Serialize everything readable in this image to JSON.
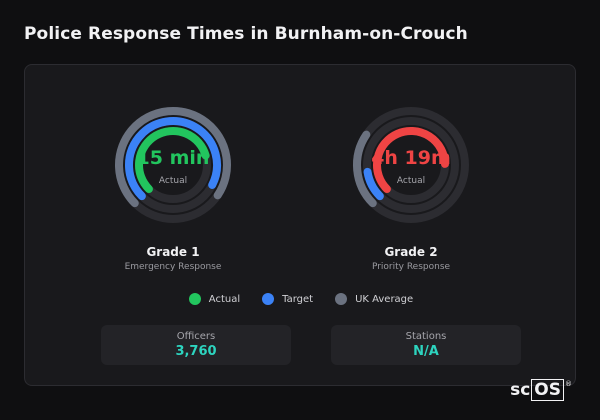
{
  "title": "Police Response Times in Burnham-on-Crouch",
  "colors": {
    "actual": "#22c55e",
    "actual_over": "#ef4444",
    "target": "#3b82f6",
    "uk_average": "#6b7280",
    "track": "#2c2c31",
    "stat_value": "#2dd4bf"
  },
  "grades": [
    {
      "value": "15 min",
      "caption": "Actual",
      "title": "Grade 1",
      "subtitle": "Emergency Response",
      "value_color": "#22c55e",
      "rings": {
        "uk_average": 0.72,
        "target": 0.7,
        "actual": 0.58
      },
      "actual_color": "#22c55e"
    },
    {
      "value": "4h 19m",
      "caption": "Actual",
      "title": "Grade 2",
      "subtitle": "Priority Response",
      "value_color": "#ef4444",
      "rings": {
        "uk_average": 0.22,
        "target": 0.1,
        "actual": 0.62
      },
      "actual_color": "#ef4444"
    }
  ],
  "legend": [
    {
      "label": "Actual",
      "color": "#22c55e"
    },
    {
      "label": "Target",
      "color": "#3b82f6"
    },
    {
      "label": "UK Average",
      "color": "#6b7280"
    }
  ],
  "stats": [
    {
      "label": "Officers",
      "value": "3,760"
    },
    {
      "label": "Stations",
      "value": "N/A"
    }
  ],
  "logo": {
    "plain": "sc",
    "boxed": "OS",
    "mark": "®"
  }
}
